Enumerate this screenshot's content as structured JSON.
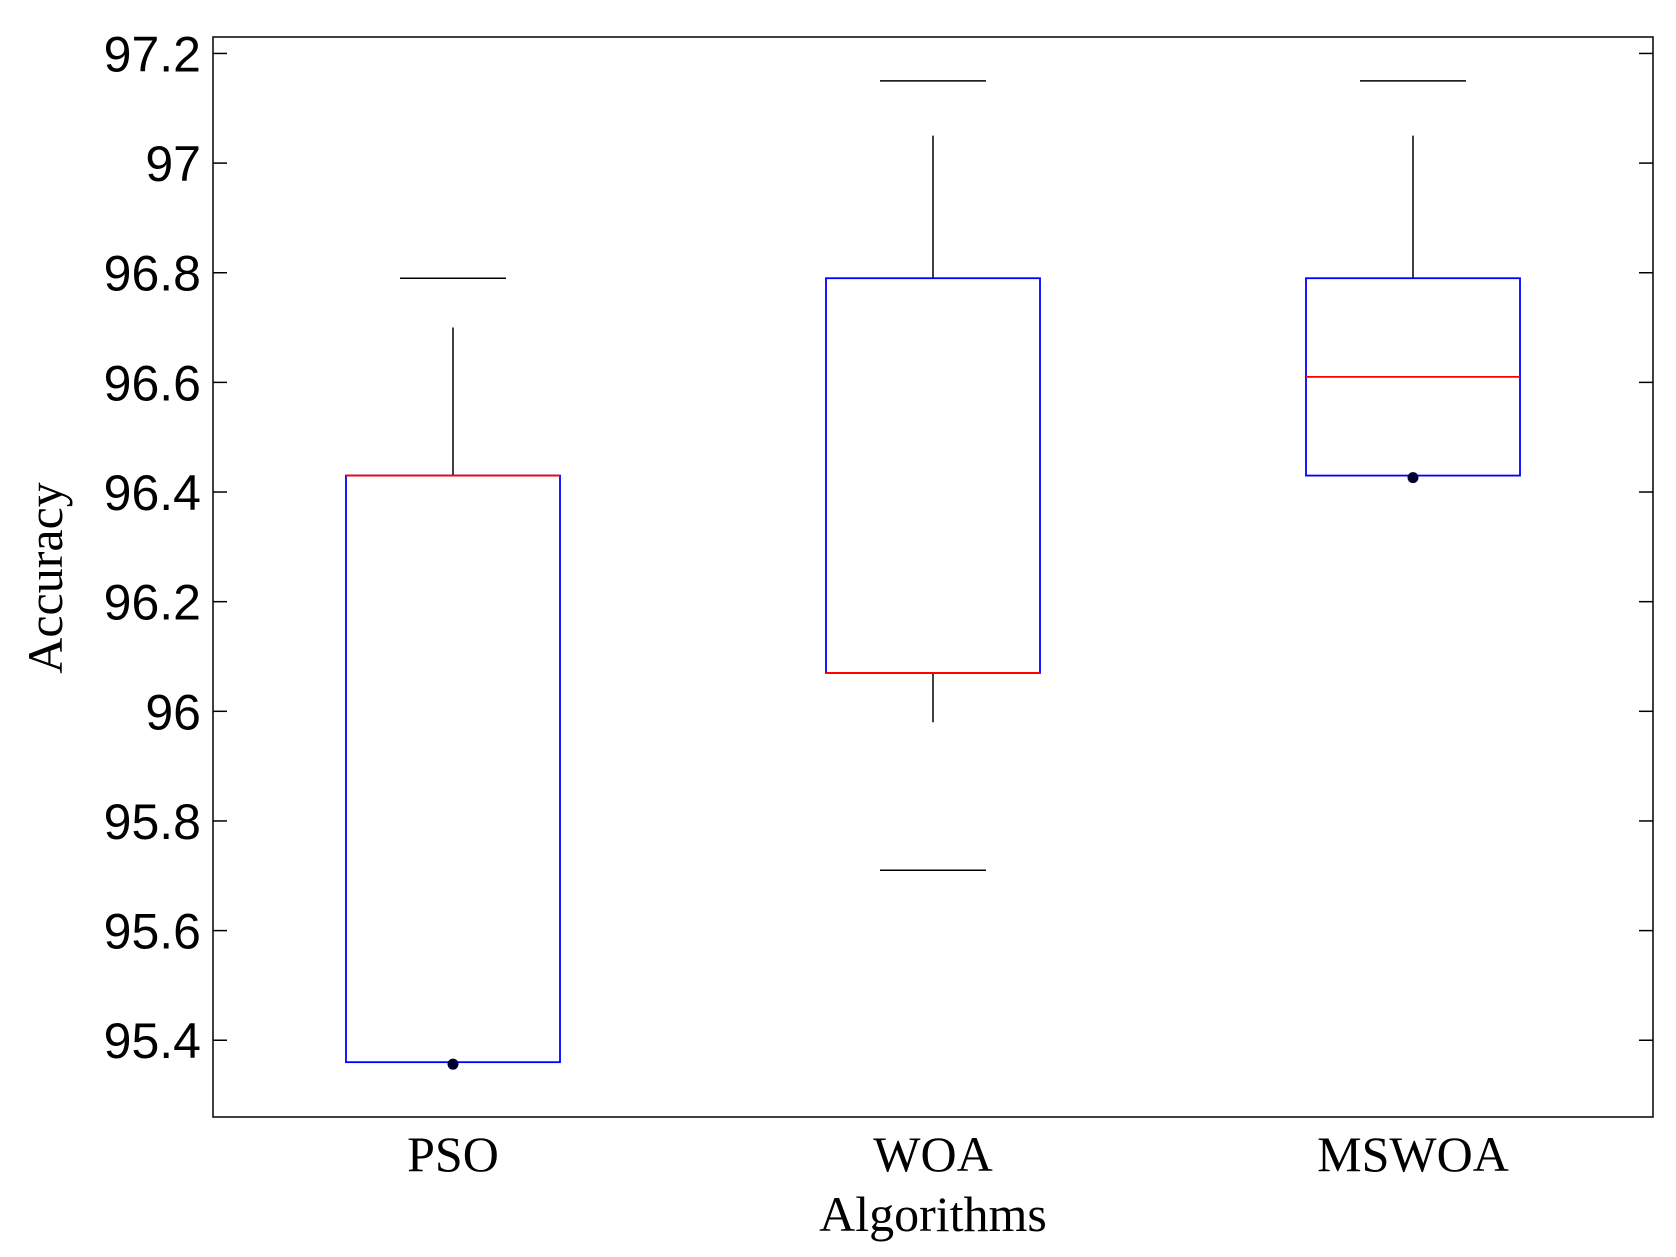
{
  "chart_data": {
    "type": "box",
    "title": "",
    "xlabel": "Algorithms",
    "ylabel": "Accuracy",
    "ylim": [
      95.26,
      97.23
    ],
    "yticks": [
      95.4,
      95.6,
      95.8,
      96,
      96.2,
      96.4,
      96.6,
      96.8,
      97,
      97.2
    ],
    "ytick_labels": [
      "95.4",
      "95.6",
      "95.8",
      "96",
      "96.2",
      "96.4",
      "96.6",
      "96.8",
      "97",
      "97.2"
    ],
    "categories": [
      "PSO",
      "WOA",
      "MSWOA"
    ],
    "boxes": [
      {
        "name": "PSO",
        "whisker_low": 95.36,
        "q1": 95.36,
        "median": 96.43,
        "q3": 96.43,
        "whisker_high": 96.79,
        "whisker_inner_high": 96.7,
        "whisker_inner_low": null,
        "outliers": [
          95.36
        ]
      },
      {
        "name": "WOA",
        "whisker_low": 95.71,
        "q1": 96.07,
        "median": 96.07,
        "q3": 96.79,
        "whisker_high": 97.15,
        "whisker_inner_high": 97.05,
        "whisker_inner_low": 95.98,
        "outliers": []
      },
      {
        "name": "MSWOA",
        "whisker_low": 96.43,
        "q1": 96.43,
        "median": 96.61,
        "q3": 96.79,
        "whisker_high": 97.15,
        "whisker_inner_high": 97.05,
        "whisker_inner_low": null,
        "outliers": [
          96.43
        ]
      }
    ],
    "colors": {
      "box": "#0000ff",
      "median": "#ff0000",
      "whisker": "#000000",
      "outlier": "#000033"
    },
    "grid": false
  }
}
